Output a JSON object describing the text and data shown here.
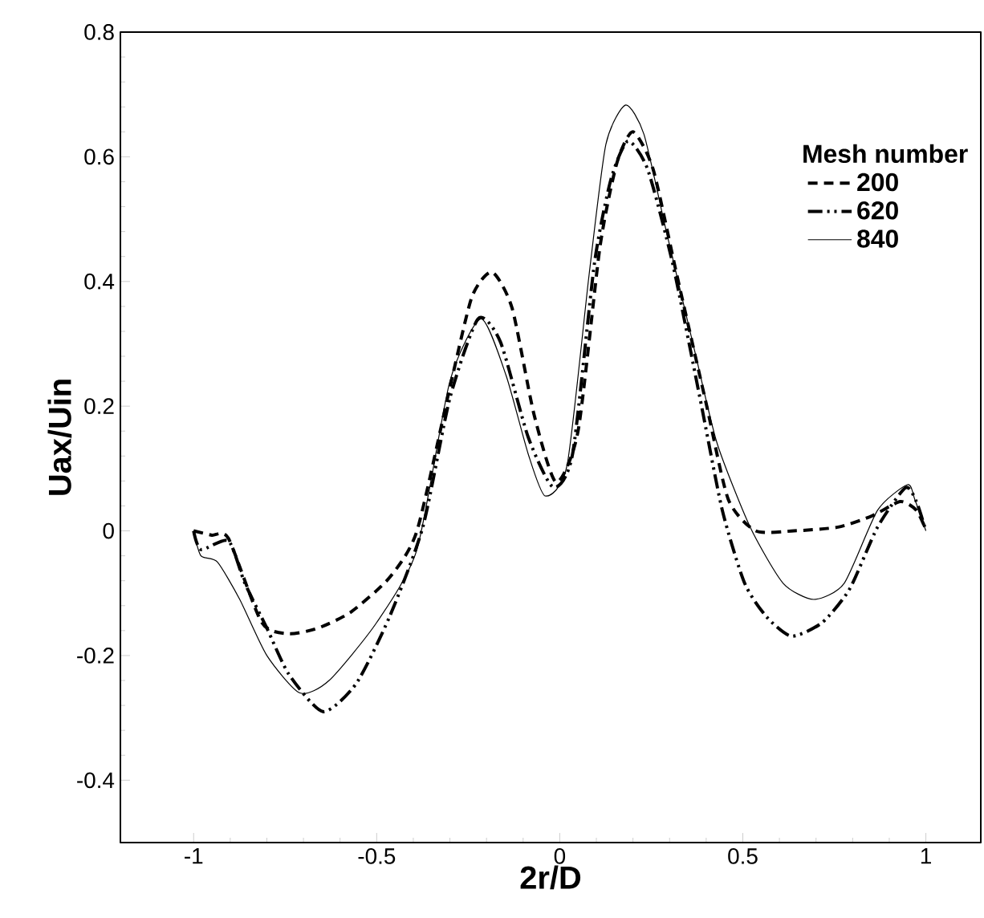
{
  "chart_data": {
    "type": "line",
    "xlabel": "2r/D",
    "ylabel": "Uax/Uin",
    "legend_title": "Mesh number",
    "legend": "top right",
    "xlim": [
      -1.2,
      1.15
    ],
    "ylim": [
      -0.5,
      0.8
    ],
    "xticks": [
      -1,
      -0.5,
      0,
      0.5,
      1
    ],
    "yticks": [
      -0.4,
      -0.2,
      0,
      0.2,
      0.4,
      0.6,
      0.8
    ],
    "grid": false,
    "marker": "none",
    "series": [
      {
        "name": "200",
        "color": "#000000",
        "line_style": "dashed",
        "x": [
          -1,
          -0.95,
          -0.905,
          -0.814,
          -0.74,
          -0.66,
          -0.57,
          -0.465,
          -0.39,
          -0.3,
          -0.24,
          -0.185,
          -0.13,
          -0.07,
          -0.01,
          0.05,
          0.11,
          0.156,
          0.2,
          0.255,
          0.32,
          0.4,
          0.46,
          0.535,
          0.64,
          0.76,
          0.853,
          0.93,
          0.974,
          1.0
        ],
        "values": [
          0,
          -0.007,
          -0.012,
          -0.147,
          -0.165,
          -0.156,
          -0.13,
          -0.075,
          0,
          0.23,
          0.375,
          0.415,
          0.357,
          0.186,
          0.078,
          0.16,
          0.456,
          0.59,
          0.64,
          0.58,
          0.41,
          0.204,
          0.051,
          0,
          0,
          0.006,
          0.024,
          0.047,
          0.033,
          0.002
        ]
      },
      {
        "name": "620",
        "color": "#000000",
        "line_style": "dashdotdot",
        "x": [
          -1,
          -0.98,
          -0.905,
          -0.86,
          -0.8,
          -0.74,
          -0.647,
          -0.556,
          -0.465,
          -0.374,
          -0.3,
          -0.223,
          -0.162,
          -0.086,
          -0.018,
          0.035,
          0.095,
          0.14,
          0.186,
          0.24,
          0.308,
          0.383,
          0.444,
          0.505,
          0.565,
          0.633,
          0.717,
          0.792,
          0.868,
          0.944,
          0.974,
          1.0
        ],
        "values": [
          0,
          -0.03,
          -0.016,
          -0.084,
          -0.156,
          -0.23,
          -0.29,
          -0.245,
          -0.138,
          0.006,
          0.213,
          0.34,
          0.303,
          0.15,
          0.07,
          0.123,
          0.43,
          0.564,
          0.625,
          0.58,
          0.43,
          0.213,
          0.033,
          -0.084,
          -0.138,
          -0.169,
          -0.147,
          -0.093,
          0.006,
          0.069,
          0.047,
          0
        ]
      },
      {
        "name": "840",
        "color": "#000000",
        "line_style": "solid",
        "x": [
          -1,
          -0.98,
          -0.935,
          -0.874,
          -0.8,
          -0.71,
          -0.63,
          -0.5,
          -0.39,
          -0.3,
          -0.215,
          -0.147,
          -0.086,
          -0.04,
          0.02,
          0.08,
          0.126,
          0.18,
          0.23,
          0.29,
          0.37,
          0.43,
          0.52,
          0.61,
          0.694,
          0.777,
          0.868,
          0.95,
          0.97,
          1.0
        ],
        "values": [
          0,
          -0.04,
          -0.05,
          -0.11,
          -0.2,
          -0.26,
          -0.24,
          -0.147,
          -0.03,
          0.24,
          0.34,
          0.25,
          0.123,
          0.056,
          0.105,
          0.41,
          0.62,
          0.683,
          0.636,
          0.483,
          0.285,
          0.14,
          0.006,
          -0.084,
          -0.11,
          -0.084,
          0.033,
          0.074,
          0.05,
          0
        ]
      }
    ]
  }
}
